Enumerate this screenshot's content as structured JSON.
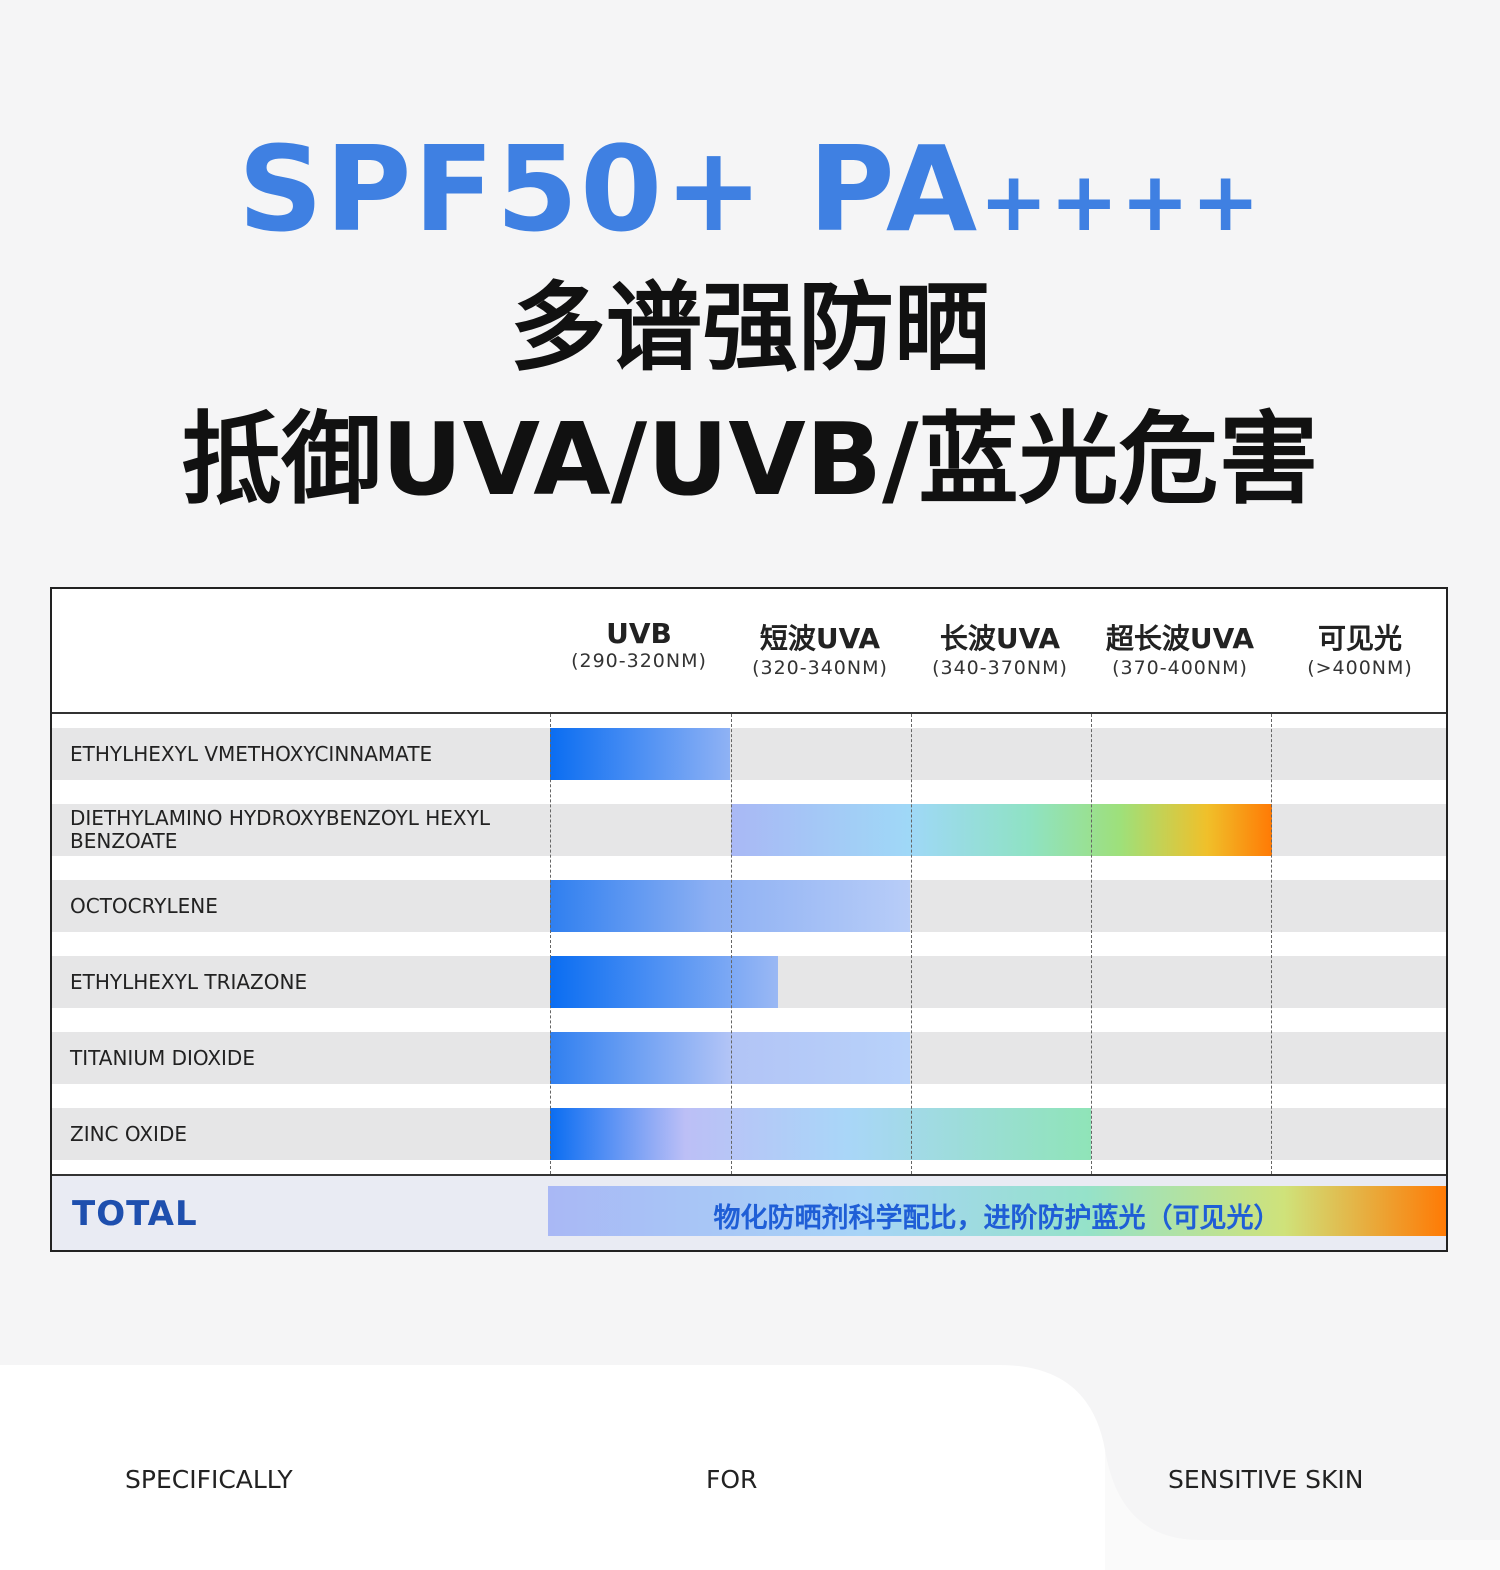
{
  "header": {
    "title_main": "SPF50+ PA",
    "title_plus": "++++",
    "subtitle": "多谱强防晒",
    "tagline": "抵御UVA/UVB/蓝光危害"
  },
  "table": {
    "columns": [
      {
        "name": "UVB",
        "range": "(290-320NM)"
      },
      {
        "name": "短波UVA",
        "range": "(320-340NM)"
      },
      {
        "name": "长波UVA",
        "range": "(340-370NM)"
      },
      {
        "name": "超长波UVA",
        "range": "(370-400NM)"
      },
      {
        "name": "可见光",
        "range": "(>400NM)"
      }
    ],
    "rows": [
      "ETHYLHEXYL VMETHOXYCINNAMATE",
      "DIETHYLAMINO HYDROXYBENZOYL HEXYL BENZOATE",
      "OCTOCRYLENE",
      "ETHYLHEXYL TRIAZONE",
      "TITANIUM DIOXIDE",
      "ZINC OXIDE"
    ],
    "total_label": "TOTAL",
    "total_note": "物化防晒剂科学配比，进阶防护蓝光（可见光）"
  },
  "footer": [
    "SPECIFICALLY",
    "FOR",
    "SENSITIVE SKIN"
  ]
}
